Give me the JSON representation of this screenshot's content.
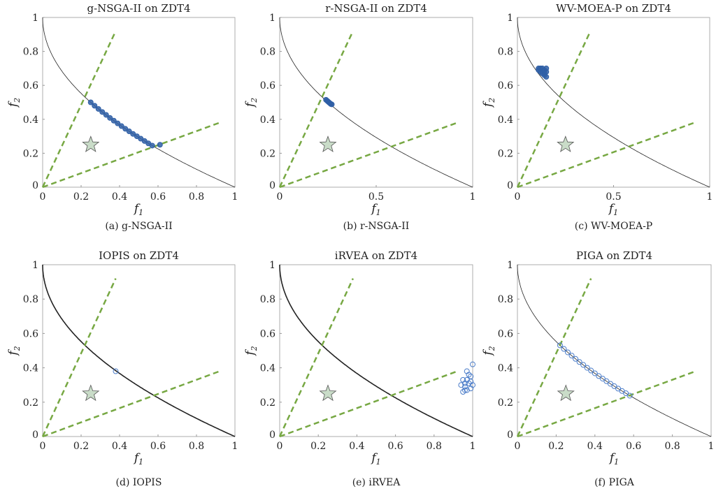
{
  "chart_data": [
    {
      "id": "a",
      "type": "scatter",
      "title": "g-NSGA-II  on  ZDT4",
      "caption": "(a) g-NSGA-II",
      "xlabel": "f1",
      "ylabel": "f2",
      "xlim": [
        0,
        1
      ],
      "ylim": [
        0,
        1
      ],
      "xticks": [
        "0",
        "0.2",
        "0.4",
        "0.6",
        "0.8",
        "1"
      ],
      "yticks": [
        "0",
        "0.2",
        "0.4",
        "0.6",
        "0.8",
        "1"
      ],
      "front_weight": "thin",
      "marker": "filled",
      "points": [
        [
          0.25,
          0.5
        ],
        [
          0.27,
          0.48
        ],
        [
          0.29,
          0.461
        ],
        [
          0.31,
          0.443
        ],
        [
          0.33,
          0.426
        ],
        [
          0.35,
          0.408
        ],
        [
          0.37,
          0.392
        ],
        [
          0.39,
          0.376
        ],
        [
          0.41,
          0.36
        ],
        [
          0.43,
          0.344
        ],
        [
          0.45,
          0.329
        ],
        [
          0.47,
          0.314
        ],
        [
          0.49,
          0.3
        ],
        [
          0.51,
          0.286
        ],
        [
          0.53,
          0.272
        ],
        [
          0.55,
          0.258
        ],
        [
          0.57,
          0.245
        ],
        [
          0.61,
          0.25
        ]
      ]
    },
    {
      "id": "b",
      "type": "scatter",
      "title": "r-NSGA-II  on  ZDT4",
      "caption": "(b) r-NSGA-II",
      "xlabel": "f1",
      "ylabel": "f2",
      "xlim": [
        0,
        1
      ],
      "ylim": [
        0,
        1
      ],
      "xticks": [
        "0",
        "0.5",
        "1"
      ],
      "yticks": [
        "0",
        "0.2",
        "0.4",
        "0.6",
        "0.8",
        "1"
      ],
      "front_weight": "thin",
      "marker": "filled",
      "points": [
        [
          0.24,
          0.515
        ],
        [
          0.245,
          0.51
        ],
        [
          0.25,
          0.505
        ],
        [
          0.255,
          0.5
        ],
        [
          0.26,
          0.495
        ],
        [
          0.265,
          0.49
        ],
        [
          0.27,
          0.488
        ]
      ]
    },
    {
      "id": "c",
      "type": "scatter",
      "title": "WV-MOEA-P  on  ZDT4",
      "caption": "(c) WV-MOEA-P",
      "xlabel": "f1",
      "ylabel": "f2",
      "xlim": [
        0,
        1
      ],
      "ylim": [
        0,
        1
      ],
      "xticks": [
        "0",
        "0.5",
        "1"
      ],
      "yticks": [
        "0",
        "0.2",
        "0.4",
        "0.6",
        "0.8",
        "1"
      ],
      "front_weight": "thin",
      "marker": "filled",
      "points": [
        [
          0.11,
          0.7
        ],
        [
          0.12,
          0.7
        ],
        [
          0.13,
          0.7
        ],
        [
          0.14,
          0.69
        ],
        [
          0.15,
          0.68
        ],
        [
          0.14,
          0.66
        ],
        [
          0.15,
          0.65
        ],
        [
          0.12,
          0.68
        ],
        [
          0.13,
          0.67
        ],
        [
          0.15,
          0.7
        ],
        [
          0.11,
          0.69
        ],
        [
          0.14,
          0.675
        ]
      ]
    },
    {
      "id": "d",
      "type": "scatter",
      "title": "IOPIS on ZDT4",
      "caption": "(d) IOPIS",
      "xlabel": "f1",
      "ylabel": "f2",
      "xlim": [
        0,
        1
      ],
      "ylim": [
        0,
        1
      ],
      "xticks": [
        "0",
        "0.2",
        "0.4",
        "0.6",
        "0.8",
        "1"
      ],
      "yticks": [
        "0",
        "0.2",
        "0.4",
        "0.6",
        "0.8",
        "1"
      ],
      "front_weight": "thick",
      "marker": "hollow",
      "points": [
        [
          0.38,
          0.38
        ]
      ]
    },
    {
      "id": "e",
      "type": "scatter",
      "title": "iRVEA  on  ZDT4",
      "caption": "(e) iRVEA",
      "xlabel": "f1",
      "ylabel": "f2",
      "xlim": [
        0,
        1
      ],
      "ylim": [
        0,
        1
      ],
      "xticks": [
        "0",
        "0.2",
        "0.4",
        "0.6",
        "0.8",
        "1"
      ],
      "yticks": [
        "0",
        "0.2",
        "0.4",
        "0.6",
        "0.8",
        "1"
      ],
      "front_weight": "thick",
      "marker": "hollow",
      "points": [
        [
          0.95,
          0.33
        ],
        [
          0.96,
          0.29
        ],
        [
          0.97,
          0.27
        ],
        [
          0.98,
          0.31
        ],
        [
          0.99,
          0.35
        ],
        [
          1.0,
          0.42
        ],
        [
          0.95,
          0.26
        ],
        [
          0.97,
          0.38
        ],
        [
          0.99,
          0.28
        ],
        [
          0.96,
          0.31
        ],
        [
          0.98,
          0.36
        ],
        [
          1.0,
          0.3
        ],
        [
          0.94,
          0.3
        ],
        [
          0.97,
          0.33
        ],
        [
          0.99,
          0.32
        ],
        [
          0.96,
          0.27
        ]
      ]
    },
    {
      "id": "f",
      "type": "scatter",
      "title": "PIGA  on  ZDT4",
      "caption": "(f) PIGA",
      "xlabel": "f1",
      "ylabel": "f2",
      "xlim": [
        0,
        1
      ],
      "ylim": [
        0,
        1
      ],
      "xticks": [
        "0",
        "0.2",
        "0.4",
        "0.6",
        "0.8",
        "1"
      ],
      "yticks": [
        "0",
        "0.2",
        "0.4",
        "0.6",
        "0.8",
        "1"
      ],
      "front_weight": "thin",
      "marker": "hollow",
      "points": [
        [
          0.22,
          0.531
        ],
        [
          0.24,
          0.51
        ],
        [
          0.26,
          0.49
        ],
        [
          0.28,
          0.471
        ],
        [
          0.3,
          0.452
        ],
        [
          0.32,
          0.434
        ],
        [
          0.34,
          0.417
        ],
        [
          0.36,
          0.4
        ],
        [
          0.38,
          0.384
        ],
        [
          0.4,
          0.368
        ],
        [
          0.42,
          0.352
        ],
        [
          0.44,
          0.337
        ],
        [
          0.46,
          0.322
        ],
        [
          0.48,
          0.307
        ],
        [
          0.5,
          0.293
        ],
        [
          0.52,
          0.279
        ],
        [
          0.54,
          0.265
        ],
        [
          0.56,
          0.252
        ],
        [
          0.58,
          0.238
        ]
      ]
    }
  ],
  "reference_point": [
    0.25,
    0.25
  ],
  "reference_lines": [
    [
      0.38,
      0.92
    ],
    [
      0.92,
      0.38
    ]
  ],
  "pareto_front": "f2 = 1 - sqrt(f1)",
  "colors": {
    "marker_filled": "#2f5fa6",
    "marker_hollow": "#4a7cc9",
    "reference_line": "#77a843",
    "star": "#c9dcc8",
    "front": "#222222"
  }
}
